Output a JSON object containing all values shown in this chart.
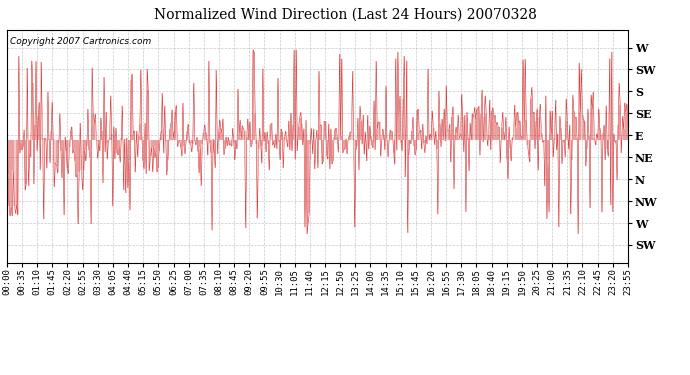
{
  "title": "Normalized Wind Direction (Last 24 Hours) 20070328",
  "copyright_text": "Copyright 2007 Cartronics.com",
  "line_color": "#cc0000",
  "bg_color": "#ffffff",
  "grid_color": "#bbbbbb",
  "ytick_labels": [
    "W",
    "SW",
    "S",
    "SE",
    "E",
    "NE",
    "N",
    "NW",
    "W",
    "SW"
  ],
  "ytick_values": [
    10,
    9,
    8,
    7,
    6,
    5,
    4,
    3,
    2,
    1
  ],
  "ylim": [
    0.2,
    10.8
  ],
  "xtick_labels": [
    "00:00",
    "00:35",
    "01:10",
    "01:45",
    "02:20",
    "02:55",
    "03:30",
    "04:05",
    "04:40",
    "05:15",
    "05:50",
    "06:25",
    "07:00",
    "07:35",
    "08:10",
    "08:45",
    "09:20",
    "09:55",
    "10:30",
    "11:05",
    "11:40",
    "12:15",
    "12:50",
    "13:25",
    "14:00",
    "14:35",
    "15:10",
    "15:45",
    "16:20",
    "16:55",
    "17:30",
    "18:05",
    "18:40",
    "19:15",
    "19:50",
    "20:25",
    "21:00",
    "21:35",
    "22:10",
    "22:45",
    "23:20",
    "23:55"
  ],
  "n_points": 576,
  "seed": 99,
  "figsize": [
    6.9,
    3.75
  ],
  "dpi": 100
}
